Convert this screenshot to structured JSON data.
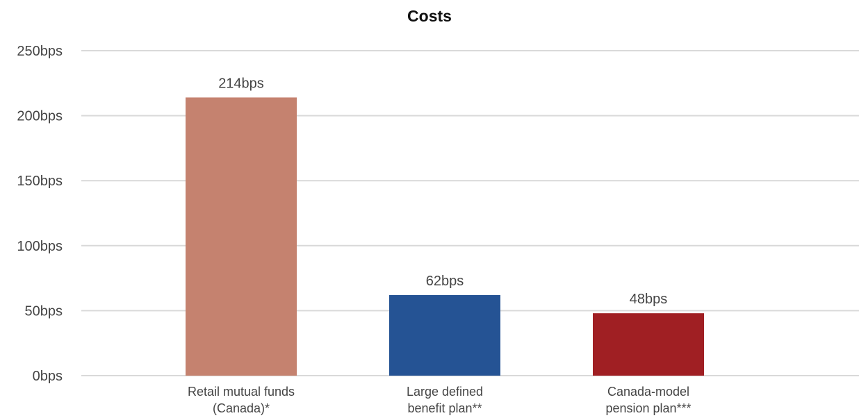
{
  "chart_data": {
    "type": "bar",
    "title": "Costs",
    "categories": [
      [
        "Retail mutual funds",
        "(Canada)*"
      ],
      [
        "Large defined",
        "benefit plan**"
      ],
      [
        "Canada-model",
        "pension plan***"
      ]
    ],
    "values": [
      214,
      62,
      48
    ],
    "data_labels": [
      "214bps",
      "62bps",
      "48bps"
    ],
    "bar_colors": [
      "#C5826F",
      "#255394",
      "#A01F23"
    ],
    "ylim": [
      0,
      250
    ],
    "yticks": [
      0,
      50,
      100,
      150,
      200,
      250
    ],
    "ytick_labels": [
      "0bps",
      "50bps",
      "100bps",
      "150bps",
      "200bps",
      "250bps"
    ],
    "xlabel": "",
    "ylabel": "",
    "grid": true,
    "legend": "none",
    "grid_color": "#D9D9D9"
  }
}
